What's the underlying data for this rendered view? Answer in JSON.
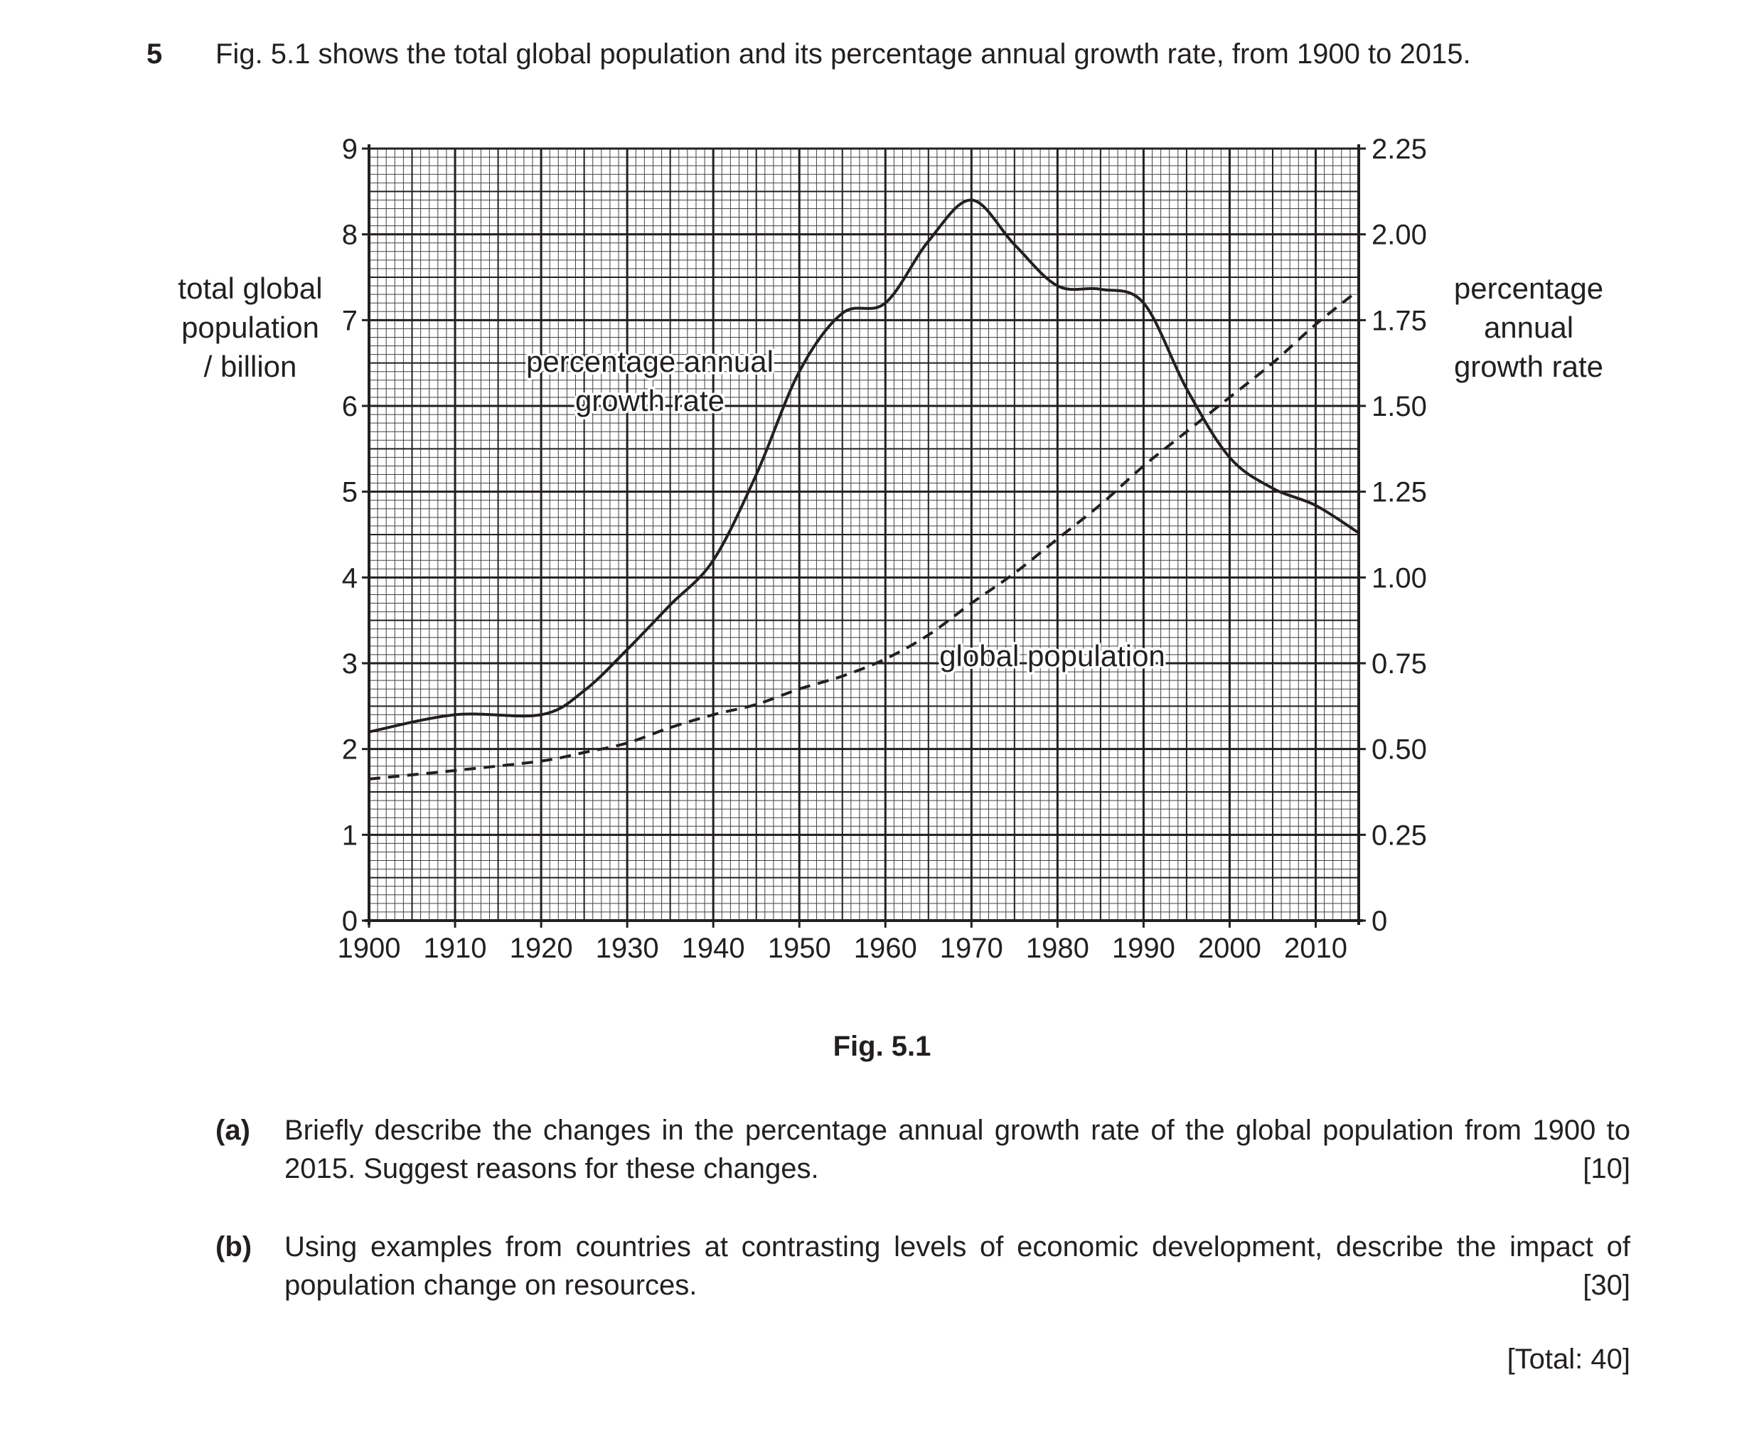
{
  "question": {
    "number": "5",
    "intro": "Fig. 5.1 shows the total global population and its percentage annual growth rate, from 1900 to 2015."
  },
  "chart_data": {
    "type": "line",
    "title": "",
    "x": [
      1900,
      1910,
      1920,
      1925,
      1930,
      1935,
      1940,
      1945,
      1950,
      1955,
      1960,
      1965,
      1970,
      1975,
      1980,
      1985,
      1990,
      1995,
      2000,
      2005,
      2010,
      2015
    ],
    "xlabel": "",
    "xlim": [
      1900,
      2015
    ],
    "xticks": [
      "1900",
      "1910",
      "1920",
      "1930",
      "1940",
      "1950",
      "1960",
      "1970",
      "1980",
      "1990",
      "2000",
      "2010"
    ],
    "y_left": {
      "label": "total global population / billion",
      "lim": [
        0,
        9
      ],
      "ticks": [
        "0",
        "1",
        "2",
        "3",
        "4",
        "5",
        "6",
        "7",
        "8",
        "9"
      ]
    },
    "y_right": {
      "label": "percentage annual growth rate",
      "lim": [
        0,
        2.25
      ],
      "ticks": [
        "0",
        "0.25",
        "0.50",
        "0.75",
        "1.00",
        "1.25",
        "1.50",
        "1.75",
        "2.00",
        "2.25"
      ]
    },
    "series": [
      {
        "name": "percentage annual growth rate",
        "axis": "right",
        "style": "solid",
        "values": [
          0.55,
          0.6,
          0.6,
          0.67,
          0.79,
          0.92,
          1.05,
          1.3,
          1.6,
          1.77,
          1.8,
          1.98,
          2.1,
          1.97,
          1.85,
          1.84,
          1.8,
          1.55,
          1.35,
          1.26,
          1.21,
          1.13
        ]
      },
      {
        "name": "global population",
        "axis": "left",
        "style": "dashed",
        "values": [
          1.65,
          1.75,
          1.86,
          1.96,
          2.07,
          2.25,
          2.4,
          2.52,
          2.7,
          2.85,
          3.05,
          3.33,
          3.7,
          4.05,
          4.45,
          4.85,
          5.3,
          5.7,
          6.1,
          6.5,
          6.95,
          7.35
        ]
      }
    ],
    "annotations": {
      "growth_label_line1": "percentage annual",
      "growth_label_line2": "growth rate",
      "population_label": "global population"
    },
    "grid": true,
    "caption": "Fig. 5.1"
  },
  "parts": [
    {
      "label": "(a)",
      "text": "Briefly describe the changes in the percentage annual growth rate of the global population from 1900 to 2015. Suggest reasons for these changes.",
      "marks": "[10]"
    },
    {
      "label": "(b)",
      "text": "Using examples from countries at contrasting levels of economic development, describe the impact of population change on resources.",
      "marks": "[30]"
    }
  ],
  "total": "[Total: 40]",
  "colors": {
    "ink": "#231f20",
    "grid": "#231f20",
    "background": "#ffffff"
  }
}
